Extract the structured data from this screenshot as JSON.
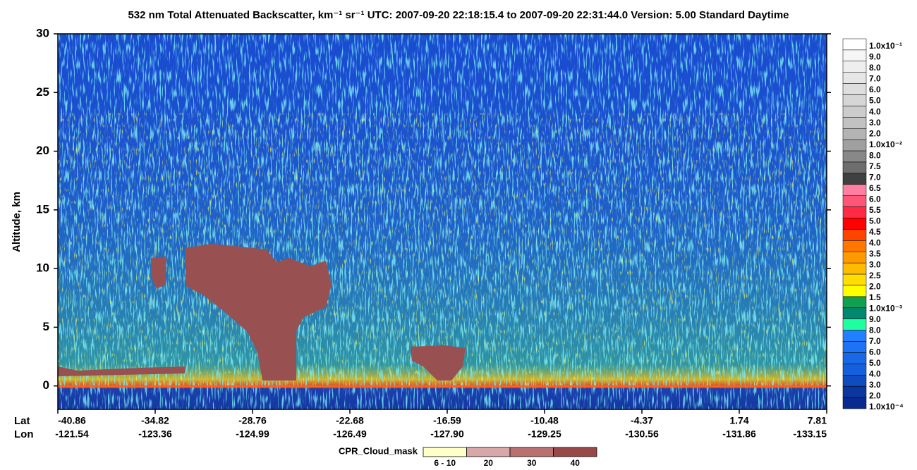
{
  "chart_data": {
    "type": "heatmap",
    "title": "532 nm Total Attenuated Backscatter, km⁻¹ sr⁻¹    UTC:  2007-09-20 22:18:15.4  to  2007-09-20 22:31:44.0    Version: 5.00  Standard  Daytime",
    "ylabel": "Altitude, km",
    "ylim": [
      -2,
      30
    ],
    "yticks": [
      0,
      5,
      10,
      15,
      20,
      25,
      30
    ],
    "x_row_labels": [
      "Lat",
      "Lon"
    ],
    "x_ticks": [
      {
        "lat": "-40.86",
        "lon": "-121.54"
      },
      {
        "lat": "-34.82",
        "lon": "-123.36"
      },
      {
        "lat": "-28.76",
        "lon": "-124.99"
      },
      {
        "lat": "-22.68",
        "lon": "-126.49"
      },
      {
        "lat": "-16.59",
        "lon": "-127.90"
      },
      {
        "lat": "-10.48",
        "lon": "-129.25"
      },
      {
        "lat": "-4.37",
        "lon": "-130.56"
      },
      {
        "lat": "1.74",
        "lon": "-131.86"
      },
      {
        "lat": "7.81",
        "lon": "-133.15"
      }
    ],
    "colorbar": {
      "labels": [
        "1.0x10⁻¹",
        "9.0",
        "8.0",
        "7.0",
        "6.0",
        "5.0",
        "4.0",
        "3.0",
        "2.0",
        "1.0x10⁻²",
        "8.0",
        "7.5",
        "7.0",
        "6.5",
        "6.0",
        "5.5",
        "5.0",
        "4.5",
        "4.0",
        "3.5",
        "3.0",
        "2.5",
        "2.0",
        "1.5",
        "1.0x10⁻³",
        "9.0",
        "8.0",
        "7.0",
        "6.0",
        "5.0",
        "4.0",
        "3.0",
        "2.0",
        "1.0x10⁻⁴"
      ],
      "colors": [
        "#ffffff",
        "#f6f6f6",
        "#eeeeee",
        "#e6e6e6",
        "#dedede",
        "#d6d6d6",
        "#cccccc",
        "#c2c2c2",
        "#b4b4b4",
        "#a0a0a0",
        "#888888",
        "#6e6e6e",
        "#404040",
        "#ff7fa0",
        "#ff5577",
        "#ff2a44",
        "#ff0000",
        "#ff4400",
        "#ff7700",
        "#ff9900",
        "#ffbb00",
        "#ffdd00",
        "#ffff00",
        "#10a050",
        "#008870",
        "#20ffa0",
        "#2080ff",
        "#1c74f4",
        "#1868e8",
        "#1460dc",
        "#0e4cc0",
        "#0a36a0",
        "#082a90"
      ]
    },
    "mask_legend": {
      "title": "CPR_Cloud_mask",
      "items": [
        {
          "label": "6 - 10",
          "color": "#ffffc8"
        },
        {
          "label": "20",
          "color": "#d8a8a8"
        },
        {
          "label": "30",
          "color": "#b87070"
        },
        {
          "label": "40",
          "color": "#984848"
        }
      ]
    }
  }
}
